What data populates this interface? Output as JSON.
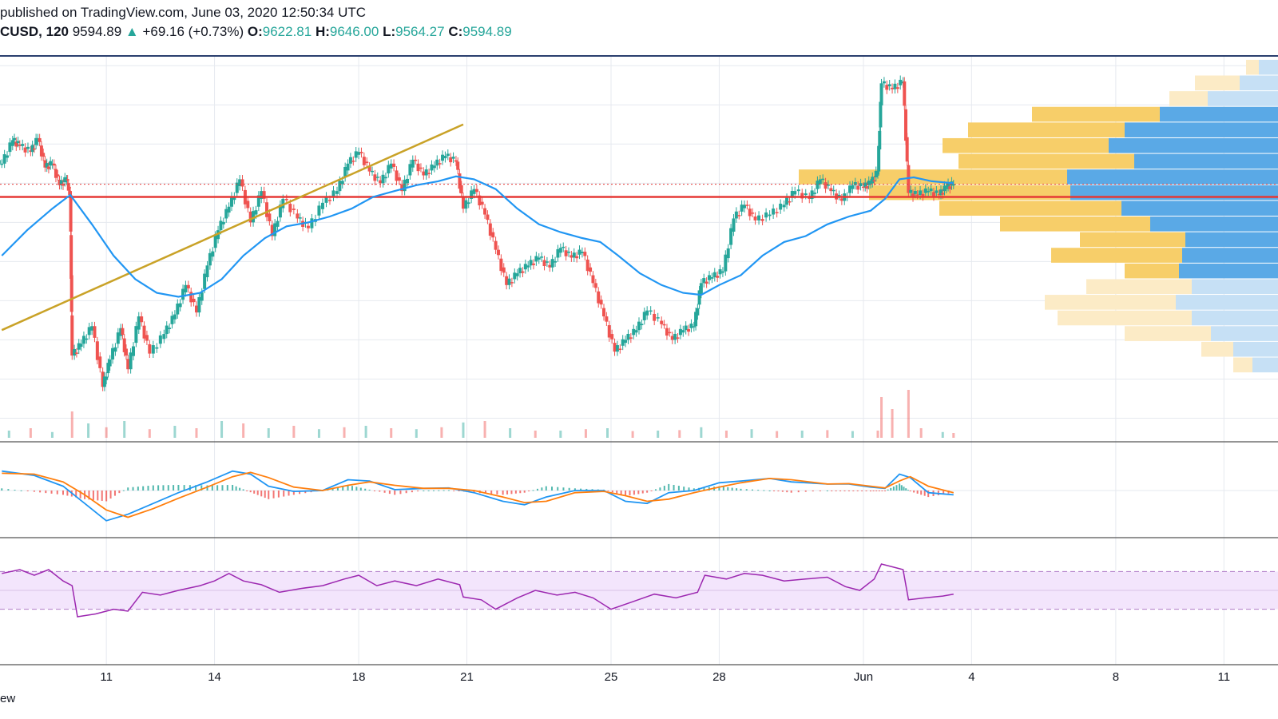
{
  "header": {
    "published": "published on TradingView.com, June 03, 2020 12:50:34 UTC",
    "symbol": "CUSD, 120",
    "last": "9594.89",
    "change_arrow": "triangle-up-icon",
    "change": "+69.16 (+0.73%)",
    "o_label": "O:",
    "o_value": "9622.81",
    "h_label": "H:",
    "h_value": "9646.00",
    "l_label": "L:",
    "l_value": "9564.27",
    "c_label": "C:",
    "c_value": "9594.89"
  },
  "footer": {
    "text": "ew"
  },
  "colors": {
    "up": "#26a69a",
    "down": "#ef5350",
    "ma": "#2196f3",
    "signal": "#ff7f0e",
    "rsi": "#9c27b0",
    "rsi_band": "#f3e5fc",
    "trendline": "#c9a227",
    "support": "#e53935",
    "vp_up_active": "#5aa9e6",
    "vp_down_active": "#f7ce69",
    "vp_up_faded": "#c6e0f5",
    "vp_down_faded": "#fcebc6",
    "grid": "#e6e9ef"
  },
  "chart_data": {
    "type": "candlestick",
    "symbol": "CUSD",
    "interval": "120",
    "x_ticks": [
      "11",
      "14",
      "18",
      "21",
      "25",
      "28",
      "Jun",
      "4",
      "8",
      "11"
    ],
    "x_tick_days": [
      11,
      14,
      18,
      21,
      25,
      28,
      32,
      35,
      39,
      42
    ],
    "x_range_days": [
      8.05,
      43.5
    ],
    "data_end_day": 34.5,
    "price_range": [
      8300,
      10250
    ],
    "last_close": 9594.89,
    "support_level": 9530,
    "trendline": {
      "from": [
        8.1,
        8850
      ],
      "to": [
        20.9,
        9900
      ]
    },
    "closes": [
      [
        8.1,
        9700
      ],
      [
        8.4,
        9820
      ],
      [
        8.6,
        9790
      ],
      [
        8.9,
        9760
      ],
      [
        9.1,
        9830
      ],
      [
        9.3,
        9680
      ],
      [
        9.5,
        9700
      ],
      [
        9.7,
        9590
      ],
      [
        9.9,
        9620
      ],
      [
        10.0,
        9540
      ],
      [
        10.05,
        8720
      ],
      [
        10.3,
        8780
      ],
      [
        10.6,
        8870
      ],
      [
        10.9,
        8560
      ],
      [
        11.1,
        8700
      ],
      [
        11.4,
        8860
      ],
      [
        11.6,
        8650
      ],
      [
        11.9,
        8920
      ],
      [
        12.2,
        8730
      ],
      [
        12.6,
        8830
      ],
      [
        12.9,
        8930
      ],
      [
        13.2,
        9080
      ],
      [
        13.5,
        8940
      ],
      [
        13.8,
        9180
      ],
      [
        14.1,
        9360
      ],
      [
        14.4,
        9480
      ],
      [
        14.7,
        9620
      ],
      [
        15.0,
        9400
      ],
      [
        15.3,
        9560
      ],
      [
        15.6,
        9330
      ],
      [
        15.9,
        9520
      ],
      [
        16.3,
        9420
      ],
      [
        16.6,
        9370
      ],
      [
        17.0,
        9500
      ],
      [
        17.4,
        9560
      ],
      [
        17.7,
        9700
      ],
      [
        18.0,
        9760
      ],
      [
        18.3,
        9660
      ],
      [
        18.6,
        9600
      ],
      [
        18.9,
        9700
      ],
      [
        19.2,
        9560
      ],
      [
        19.5,
        9720
      ],
      [
        19.8,
        9640
      ],
      [
        20.1,
        9690
      ],
      [
        20.4,
        9740
      ],
      [
        20.7,
        9710
      ],
      [
        20.9,
        9470
      ],
      [
        21.2,
        9570
      ],
      [
        21.5,
        9440
      ],
      [
        21.8,
        9260
      ],
      [
        22.1,
        9080
      ],
      [
        22.4,
        9140
      ],
      [
        22.7,
        9180
      ],
      [
        23.0,
        9220
      ],
      [
        23.3,
        9170
      ],
      [
        23.6,
        9270
      ],
      [
        23.9,
        9220
      ],
      [
        24.2,
        9250
      ],
      [
        24.5,
        9090
      ],
      [
        24.8,
        8920
      ],
      [
        25.1,
        8740
      ],
      [
        25.4,
        8800
      ],
      [
        25.7,
        8850
      ],
      [
        26.0,
        8950
      ],
      [
        26.4,
        8880
      ],
      [
        26.7,
        8800
      ],
      [
        27.0,
        8850
      ],
      [
        27.3,
        8870
      ],
      [
        27.5,
        9090
      ],
      [
        27.8,
        9120
      ],
      [
        28.1,
        9150
      ],
      [
        28.4,
        9420
      ],
      [
        28.7,
        9490
      ],
      [
        29.0,
        9410
      ],
      [
        29.4,
        9440
      ],
      [
        29.8,
        9490
      ],
      [
        30.1,
        9560
      ],
      [
        30.5,
        9520
      ],
      [
        30.8,
        9620
      ],
      [
        31.1,
        9560
      ],
      [
        31.4,
        9510
      ],
      [
        31.7,
        9590
      ],
      [
        32.0,
        9580
      ],
      [
        32.2,
        9600
      ],
      [
        32.4,
        9660
      ],
      [
        32.5,
        10110
      ],
      [
        32.8,
        10080
      ],
      [
        33.1,
        10120
      ],
      [
        33.25,
        9550
      ],
      [
        33.5,
        9540
      ],
      [
        33.8,
        9560
      ],
      [
        34.1,
        9540
      ],
      [
        34.3,
        9580
      ],
      [
        34.5,
        9594.89
      ]
    ],
    "moving_average": [
      [
        8.1,
        9230
      ],
      [
        8.8,
        9360
      ],
      [
        9.5,
        9470
      ],
      [
        10.0,
        9540
      ],
      [
        10.6,
        9390
      ],
      [
        11.2,
        9230
      ],
      [
        11.8,
        9110
      ],
      [
        12.4,
        9040
      ],
      [
        13.0,
        9020
      ],
      [
        13.6,
        9040
      ],
      [
        14.2,
        9110
      ],
      [
        14.8,
        9230
      ],
      [
        15.4,
        9320
      ],
      [
        16.0,
        9380
      ],
      [
        16.6,
        9400
      ],
      [
        17.2,
        9430
      ],
      [
        17.8,
        9470
      ],
      [
        18.4,
        9530
      ],
      [
        19.0,
        9560
      ],
      [
        19.6,
        9590
      ],
      [
        20.2,
        9610
      ],
      [
        20.7,
        9635
      ],
      [
        21.2,
        9620
      ],
      [
        21.8,
        9570
      ],
      [
        22.4,
        9470
      ],
      [
        23.0,
        9390
      ],
      [
        23.6,
        9350
      ],
      [
        24.2,
        9320
      ],
      [
        24.7,
        9300
      ],
      [
        25.2,
        9230
      ],
      [
        25.8,
        9140
      ],
      [
        26.4,
        9080
      ],
      [
        27.0,
        9040
      ],
      [
        27.5,
        9030
      ],
      [
        28.0,
        9080
      ],
      [
        28.6,
        9130
      ],
      [
        29.2,
        9230
      ],
      [
        29.8,
        9300
      ],
      [
        30.4,
        9330
      ],
      [
        31.0,
        9390
      ],
      [
        31.6,
        9430
      ],
      [
        32.2,
        9460
      ],
      [
        32.6,
        9520
      ],
      [
        33.0,
        9620
      ],
      [
        33.4,
        9630
      ],
      [
        33.9,
        9610
      ],
      [
        34.5,
        9600
      ]
    ],
    "volume_y_range": [
      0,
      100
    ],
    "volume": [
      [
        8.3,
        15
      ],
      [
        8.9,
        20
      ],
      [
        9.5,
        12
      ],
      [
        10.05,
        55
      ],
      [
        10.5,
        30
      ],
      [
        11.0,
        22
      ],
      [
        11.5,
        35
      ],
      [
        12.2,
        18
      ],
      [
        12.9,
        25
      ],
      [
        13.5,
        20
      ],
      [
        14.2,
        35
      ],
      [
        14.8,
        30
      ],
      [
        15.5,
        20
      ],
      [
        16.2,
        25
      ],
      [
        16.9,
        18
      ],
      [
        17.6,
        22
      ],
      [
        18.2,
        25
      ],
      [
        18.9,
        20
      ],
      [
        19.6,
        18
      ],
      [
        20.3,
        22
      ],
      [
        20.9,
        32
      ],
      [
        21.5,
        35
      ],
      [
        22.2,
        20
      ],
      [
        22.9,
        15
      ],
      [
        23.6,
        15
      ],
      [
        24.3,
        18
      ],
      [
        24.9,
        20
      ],
      [
        25.6,
        14
      ],
      [
        26.3,
        15
      ],
      [
        26.9,
        16
      ],
      [
        27.5,
        22
      ],
      [
        28.2,
        15
      ],
      [
        28.9,
        18
      ],
      [
        29.6,
        14
      ],
      [
        30.3,
        15
      ],
      [
        31.0,
        16
      ],
      [
        31.7,
        14
      ],
      [
        32.4,
        15
      ],
      [
        32.5,
        85
      ],
      [
        32.8,
        60
      ],
      [
        33.25,
        100
      ],
      [
        33.6,
        20
      ],
      [
        34.2,
        12
      ],
      [
        34.5,
        10
      ]
    ],
    "macd_y_range": [
      -1,
      1
    ],
    "macd": [
      [
        8.1,
        0.45
      ],
      [
        9.0,
        0.35
      ],
      [
        9.8,
        0.1
      ],
      [
        10.4,
        -0.3
      ],
      [
        11.0,
        -0.7
      ],
      [
        11.6,
        -0.55
      ],
      [
        12.3,
        -0.3
      ],
      [
        13.0,
        -0.05
      ],
      [
        13.8,
        0.2
      ],
      [
        14.5,
        0.45
      ],
      [
        15.0,
        0.38
      ],
      [
        15.5,
        0.1
      ],
      [
        16.2,
        -0.02
      ],
      [
        17.0,
        0.0
      ],
      [
        17.7,
        0.25
      ],
      [
        18.3,
        0.22
      ],
      [
        19.0,
        0.02
      ],
      [
        19.8,
        0.05
      ],
      [
        20.5,
        0.06
      ],
      [
        21.2,
        -0.05
      ],
      [
        22.0,
        -0.25
      ],
      [
        22.6,
        -0.33
      ],
      [
        23.2,
        -0.15
      ],
      [
        24.0,
        0.0
      ],
      [
        24.8,
        0.0
      ],
      [
        25.4,
        -0.25
      ],
      [
        26.0,
        -0.3
      ],
      [
        26.6,
        -0.05
      ],
      [
        27.3,
        0.0
      ],
      [
        28.0,
        0.18
      ],
      [
        28.6,
        0.22
      ],
      [
        29.4,
        0.28
      ],
      [
        30.0,
        0.2
      ],
      [
        31.0,
        0.15
      ],
      [
        31.6,
        0.15
      ],
      [
        32.2,
        0.08
      ],
      [
        32.6,
        0.05
      ],
      [
        33.0,
        0.38
      ],
      [
        33.3,
        0.3
      ],
      [
        33.8,
        -0.05
      ],
      [
        34.5,
        -0.1
      ]
    ],
    "macd_signal": [
      [
        8.1,
        0.4
      ],
      [
        9.0,
        0.38
      ],
      [
        9.8,
        0.2
      ],
      [
        10.4,
        -0.1
      ],
      [
        11.0,
        -0.45
      ],
      [
        11.6,
        -0.62
      ],
      [
        12.3,
        -0.42
      ],
      [
        13.0,
        -0.18
      ],
      [
        13.8,
        0.08
      ],
      [
        14.5,
        0.32
      ],
      [
        15.0,
        0.42
      ],
      [
        15.5,
        0.3
      ],
      [
        16.2,
        0.08
      ],
      [
        17.0,
        0.0
      ],
      [
        17.7,
        0.12
      ],
      [
        18.3,
        0.2
      ],
      [
        19.0,
        0.12
      ],
      [
        19.8,
        0.05
      ],
      [
        20.5,
        0.05
      ],
      [
        21.2,
        0.0
      ],
      [
        22.0,
        -0.15
      ],
      [
        22.6,
        -0.28
      ],
      [
        23.2,
        -0.25
      ],
      [
        24.0,
        -0.05
      ],
      [
        24.8,
        -0.02
      ],
      [
        25.4,
        -0.12
      ],
      [
        26.0,
        -0.25
      ],
      [
        26.6,
        -0.2
      ],
      [
        27.3,
        -0.05
      ],
      [
        28.0,
        0.08
      ],
      [
        28.6,
        0.18
      ],
      [
        29.4,
        0.28
      ],
      [
        30.0,
        0.25
      ],
      [
        31.0,
        0.15
      ],
      [
        31.6,
        0.16
      ],
      [
        32.2,
        0.1
      ],
      [
        32.6,
        0.06
      ],
      [
        33.0,
        0.22
      ],
      [
        33.3,
        0.32
      ],
      [
        33.8,
        0.1
      ],
      [
        34.5,
        -0.05
      ]
    ],
    "rsi_y_range": [
      0,
      100
    ],
    "rsi_band": [
      30,
      70
    ],
    "rsi": [
      [
        8.1,
        68
      ],
      [
        8.6,
        72
      ],
      [
        9.0,
        66
      ],
      [
        9.4,
        72
      ],
      [
        9.8,
        60
      ],
      [
        10.05,
        55
      ],
      [
        10.2,
        22
      ],
      [
        10.7,
        25
      ],
      [
        11.2,
        30
      ],
      [
        11.6,
        28
      ],
      [
        12.0,
        48
      ],
      [
        12.5,
        45
      ],
      [
        13.0,
        50
      ],
      [
        13.6,
        55
      ],
      [
        14.0,
        60
      ],
      [
        14.4,
        68
      ],
      [
        14.8,
        60
      ],
      [
        15.3,
        56
      ],
      [
        15.8,
        48
      ],
      [
        16.4,
        52
      ],
      [
        17.0,
        55
      ],
      [
        17.6,
        62
      ],
      [
        18.0,
        66
      ],
      [
        18.5,
        55
      ],
      [
        19.0,
        60
      ],
      [
        19.6,
        55
      ],
      [
        20.2,
        62
      ],
      [
        20.8,
        56
      ],
      [
        20.9,
        43
      ],
      [
        21.4,
        40
      ],
      [
        21.8,
        30
      ],
      [
        22.4,
        42
      ],
      [
        22.9,
        50
      ],
      [
        23.5,
        45
      ],
      [
        24.0,
        48
      ],
      [
        24.5,
        42
      ],
      [
        25.0,
        30
      ],
      [
        25.6,
        38
      ],
      [
        26.2,
        46
      ],
      [
        26.8,
        42
      ],
      [
        27.4,
        48
      ],
      [
        27.6,
        66
      ],
      [
        28.2,
        62
      ],
      [
        28.7,
        68
      ],
      [
        29.2,
        66
      ],
      [
        29.8,
        60
      ],
      [
        30.4,
        62
      ],
      [
        31.0,
        64
      ],
      [
        31.5,
        54
      ],
      [
        31.9,
        50
      ],
      [
        32.3,
        62
      ],
      [
        32.5,
        78
      ],
      [
        32.8,
        75
      ],
      [
        33.1,
        72
      ],
      [
        33.25,
        40
      ],
      [
        33.7,
        42
      ],
      [
        34.2,
        44
      ],
      [
        34.5,
        46
      ]
    ],
    "volume_profile_rows": [
      {
        "price": 10190,
        "up": 0.3,
        "down": 0.2,
        "faded": true
      },
      {
        "price": 10110,
        "up": 0.6,
        "down": 0.7,
        "faded": true
      },
      {
        "price": 10030,
        "up": 1.1,
        "down": 0.6,
        "faded": true
      },
      {
        "price": 9950,
        "up": 1.85,
        "down": 2.0,
        "faded": false
      },
      {
        "price": 9870,
        "up": 2.4,
        "down": 2.45,
        "faded": false
      },
      {
        "price": 9790,
        "up": 2.65,
        "down": 2.6,
        "faded": false
      },
      {
        "price": 9710,
        "up": 2.25,
        "down": 2.75,
        "faded": false
      },
      {
        "price": 9630,
        "up": 3.3,
        "down": 4.2,
        "faded": false
      },
      {
        "price": 9550,
        "up": 3.25,
        "down": 3.15,
        "faded": false
      },
      {
        "price": 9470,
        "up": 2.45,
        "down": 2.85,
        "faded": false
      },
      {
        "price": 9390,
        "up": 2.0,
        "down": 2.35,
        "faded": false
      },
      {
        "price": 9310,
        "up": 1.45,
        "down": 1.65,
        "faded": false
      },
      {
        "price": 9230,
        "up": 1.5,
        "down": 2.05,
        "faded": false
      },
      {
        "price": 9150,
        "up": 1.55,
        "down": 0.85,
        "faded": false
      },
      {
        "price": 9070,
        "up": 1.35,
        "down": 1.65,
        "faded": true
      },
      {
        "price": 8990,
        "up": 1.6,
        "down": 2.05,
        "faded": true
      },
      {
        "price": 8910,
        "up": 1.35,
        "down": 2.1,
        "faded": true
      },
      {
        "price": 8830,
        "up": 1.05,
        "down": 1.35,
        "faded": true
      },
      {
        "price": 8750,
        "up": 0.7,
        "down": 0.5,
        "faded": true
      },
      {
        "price": 8670,
        "up": 0.4,
        "down": 0.3,
        "faded": true
      }
    ]
  }
}
